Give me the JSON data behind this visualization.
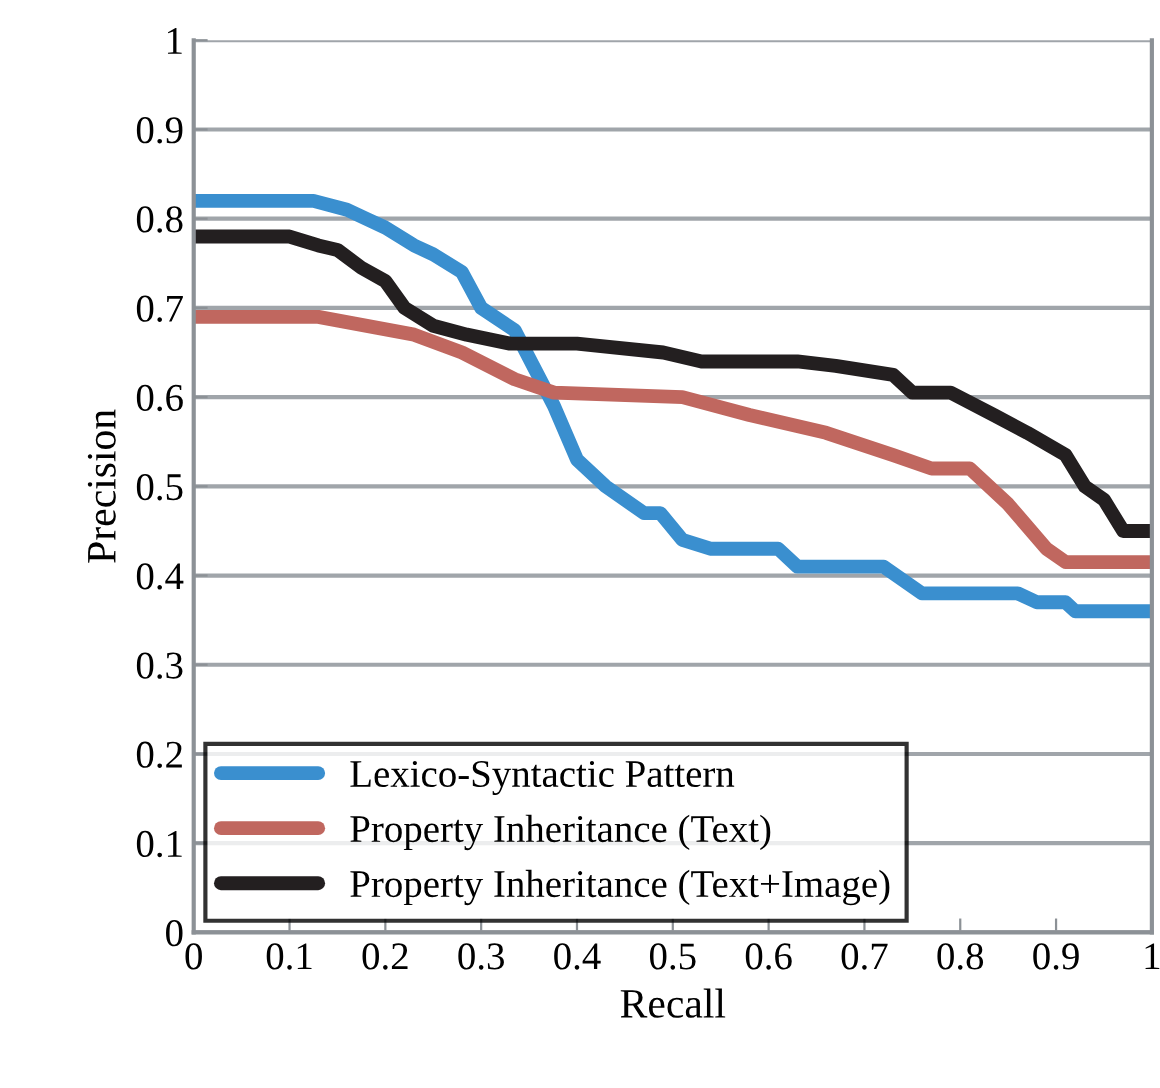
{
  "chart_data": {
    "type": "line",
    "xlabel": "Recall",
    "ylabel": "Precision",
    "xlim": [
      0,
      1
    ],
    "ylim": [
      0,
      1
    ],
    "xticks": [
      0,
      0.1,
      0.2,
      0.3,
      0.4,
      0.5,
      0.6,
      0.7,
      0.8,
      0.9,
      1
    ],
    "yticks": [
      0,
      0.1,
      0.2,
      0.3,
      0.4,
      0.5,
      0.6,
      0.7,
      0.8,
      0.9,
      1
    ],
    "grid": "y",
    "legend": "bottom left",
    "marker": "none",
    "line_style": "solid",
    "series": [
      {
        "name": "Lexico-Syntactic Pattern",
        "color": "#3a8fcf",
        "x": [
          0,
          0.125,
          0.16,
          0.18,
          0.2,
          0.23,
          0.25,
          0.28,
          0.3,
          0.335,
          0.376,
          0.4,
          0.43,
          0.47,
          0.487,
          0.51,
          0.54,
          0.61,
          0.63,
          0.72,
          0.76,
          0.86,
          0.88,
          0.91,
          0.92,
          1
        ],
        "values": [
          0.82,
          0.82,
          0.81,
          0.8,
          0.79,
          0.77,
          0.76,
          0.74,
          0.7,
          0.675,
          0.59,
          0.53,
          0.5,
          0.47,
          0.47,
          0.44,
          0.43,
          0.43,
          0.41,
          0.41,
          0.38,
          0.38,
          0.37,
          0.37,
          0.36,
          0.36
        ]
      },
      {
        "name": "Property Inheritance (Text)",
        "color": "#c0675f",
        "x": [
          0,
          0.13,
          0.23,
          0.28,
          0.335,
          0.376,
          0.51,
          0.58,
          0.66,
          0.73,
          0.77,
          0.81,
          0.85,
          0.89,
          0.91,
          1
        ],
        "values": [
          0.69,
          0.69,
          0.67,
          0.65,
          0.62,
          0.605,
          0.6,
          0.58,
          0.56,
          0.535,
          0.52,
          0.52,
          0.48,
          0.43,
          0.415,
          0.415
        ]
      },
      {
        "name": "Property Inheritance (Text+Image)",
        "color": "#231f20",
        "x": [
          0,
          0.1,
          0.13,
          0.15,
          0.175,
          0.2,
          0.22,
          0.25,
          0.285,
          0.33,
          0.4,
          0.49,
          0.53,
          0.63,
          0.67,
          0.73,
          0.75,
          0.79,
          0.835,
          0.87,
          0.91,
          0.93,
          0.95,
          0.97,
          1
        ],
        "values": [
          0.78,
          0.78,
          0.77,
          0.765,
          0.745,
          0.73,
          0.7,
          0.68,
          0.67,
          0.66,
          0.66,
          0.65,
          0.64,
          0.64,
          0.635,
          0.625,
          0.605,
          0.605,
          0.58,
          0.56,
          0.535,
          0.5,
          0.485,
          0.45,
          0.45
        ]
      }
    ]
  }
}
